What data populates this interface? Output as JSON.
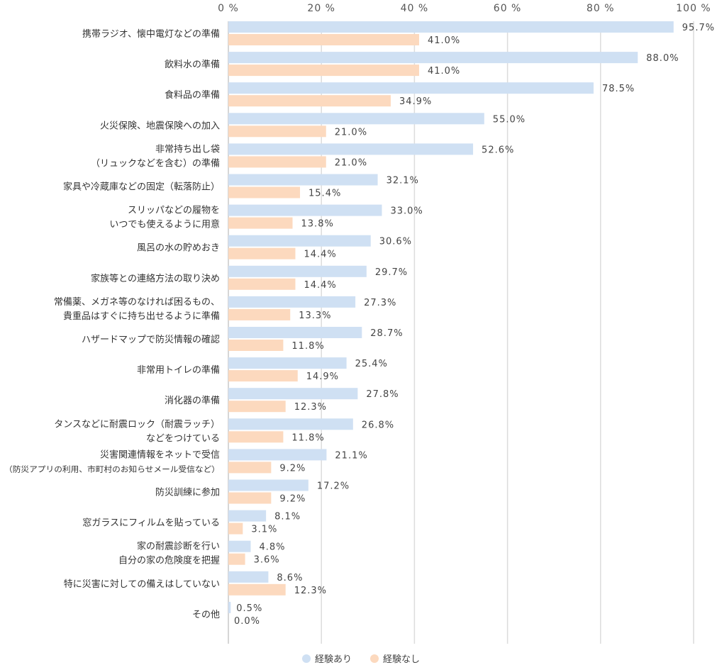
{
  "chart_data": {
    "type": "bar",
    "orientation": "horizontal",
    "xlim": [
      0,
      100
    ],
    "ticks": [
      {
        "value": 0,
        "label": "0 %"
      },
      {
        "value": 20,
        "label": "20 %"
      },
      {
        "value": 40,
        "label": "40 %"
      },
      {
        "value": 60,
        "label": "60 %"
      },
      {
        "value": 80,
        "label": "80 %"
      },
      {
        "value": 100,
        "label": "100 %"
      }
    ],
    "grid": true,
    "legend_position": "bottom-center",
    "series": [
      {
        "name": "経験あり",
        "color": "#cfe0f3",
        "values": [
          95.7,
          88.0,
          78.5,
          55.0,
          52.6,
          32.1,
          33.0,
          30.6,
          29.7,
          27.3,
          28.7,
          25.4,
          27.8,
          26.8,
          21.1,
          17.2,
          8.1,
          4.8,
          8.6,
          0.5
        ],
        "labels": [
          "95.7%",
          "88.0%",
          "78.5%",
          "55.0%",
          "52.6%",
          "32.1%",
          "33.0%",
          "30.6%",
          "29.7%",
          "27.3%",
          "28.7%",
          "25.4%",
          "27.8%",
          "26.8%",
          "21.1%",
          "17.2%",
          "8.1%",
          "4.8%",
          "8.6%",
          "0.5%"
        ]
      },
      {
        "name": "経験なし",
        "color": "#fcd9be",
        "values": [
          41.0,
          41.0,
          34.9,
          21.0,
          21.0,
          15.4,
          13.8,
          14.4,
          14.4,
          13.3,
          11.8,
          14.9,
          12.3,
          11.8,
          9.2,
          9.2,
          3.1,
          3.6,
          12.3,
          0.0
        ],
        "labels": [
          "41.0%",
          "41.0%",
          "34.9%",
          "21.0%",
          "21.0%",
          "15.4%",
          "13.8%",
          "14.4%",
          "14.4%",
          "13.3%",
          "11.8%",
          "14.9%",
          "12.3%",
          "11.8%",
          "9.2%",
          "9.2%",
          "3.1%",
          "3.6%",
          "12.3%",
          "0.0%"
        ]
      }
    ],
    "categories": [
      {
        "lines": [
          "携帯ラジオ、懐中電灯などの準備"
        ]
      },
      {
        "lines": [
          "飲料水の準備"
        ]
      },
      {
        "lines": [
          "食料品の準備"
        ]
      },
      {
        "lines": [
          "火災保険、地震保険への加入"
        ]
      },
      {
        "lines": [
          "非常持ち出し袋",
          "（リュックなどを含む）の準備"
        ]
      },
      {
        "lines": [
          "家具や冷蔵庫などの固定（転落防止）"
        ]
      },
      {
        "lines": [
          "スリッパなどの履物を",
          "いつでも使えるように用意"
        ]
      },
      {
        "lines": [
          "風呂の水の貯めおき"
        ]
      },
      {
        "lines": [
          "家族等との連絡方法の取り決め"
        ]
      },
      {
        "lines": [
          "常備薬、メガネ等のなければ困るもの、",
          "貴重品はすぐに持ち出せるように準備"
        ]
      },
      {
        "lines": [
          "ハザードマップで防災情報の確認"
        ]
      },
      {
        "lines": [
          "非常用トイレの準備"
        ]
      },
      {
        "lines": [
          "消化器の準備"
        ]
      },
      {
        "lines": [
          "タンスなどに耐震ロック（耐震ラッチ）",
          "などをつけている"
        ]
      },
      {
        "lines": [
          "災害関連情報をネットで受信",
          "（防災アプリの利用、市町村のお知らせメール受信など）"
        ]
      },
      {
        "lines": [
          "防災訓練に参加"
        ]
      },
      {
        "lines": [
          "窓ガラスにフィルムを貼っている"
        ]
      },
      {
        "lines": [
          "家の耐震診断を行い",
          "自分の家の危険度を把握"
        ]
      },
      {
        "lines": [
          "特に災害に対しての備えはしていない"
        ]
      },
      {
        "lines": [
          "その他"
        ]
      }
    ],
    "axis_color": "#c8c8c8",
    "grid_color": "#dcdcdc"
  }
}
